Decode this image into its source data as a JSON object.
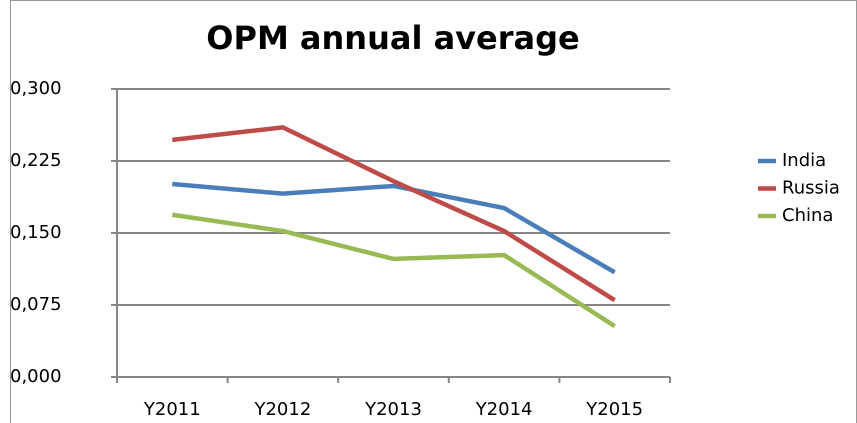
{
  "chart_data": {
    "type": "line",
    "title": "OPM annual average",
    "categories": [
      "Y2011",
      "Y2012",
      "Y2013",
      "Y2014",
      "Y2015"
    ],
    "series": [
      {
        "name": "India",
        "color": "#4a7ebb",
        "values": [
          0.201,
          0.191,
          0.199,
          0.176,
          0.109
        ]
      },
      {
        "name": "Russia",
        "color": "#be4b48",
        "values": [
          0.247,
          0.26,
          0.204,
          0.152,
          0.08
        ]
      },
      {
        "name": "China",
        "color": "#98b954",
        "values": [
          0.169,
          0.152,
          0.123,
          0.127,
          0.053
        ]
      }
    ],
    "ylim": [
      0,
      0.3
    ],
    "yticks": [
      {
        "value": 0,
        "label": "0,000"
      },
      {
        "value": 0.075,
        "label": "0,075"
      },
      {
        "value": 0.15,
        "label": "0,150"
      },
      {
        "value": 0.225,
        "label": "0,225"
      },
      {
        "value": 0.3,
        "label": "0,300"
      }
    ],
    "grid": true,
    "legend": "right"
  }
}
